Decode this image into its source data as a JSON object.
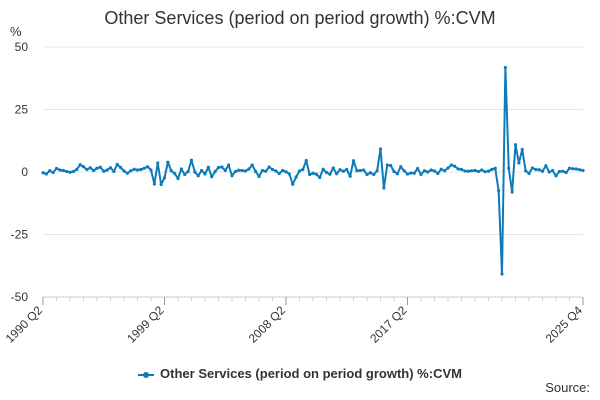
{
  "chart_data": {
    "type": "line",
    "title": "Other Services (period on period growth) %:CVM",
    "ylabel": "%",
    "xlabel": "",
    "ylim": [
      -50,
      50
    ],
    "yticks": [
      -50,
      -25,
      0,
      25,
      50
    ],
    "xtick_labels": [
      "1990 Q2",
      "1999 Q2",
      "2008 Q2",
      "2017 Q2",
      "2025 Q4"
    ],
    "grid": true,
    "legend_position": "bottom",
    "color": "#0d7bb8",
    "series": [
      {
        "name": "Other Services (period on period growth) %:CVM",
        "x_start": "1990 Q2",
        "x_end": "2025 Q4",
        "values": [
          -0.3,
          -0.8,
          0.5,
          -0.2,
          1.4,
          0.8,
          0.6,
          0.2,
          -0.1,
          0.2,
          1.0,
          2.9,
          2.1,
          1.0,
          1.7,
          0.6,
          1.5,
          1.9,
          0.3,
          0.8,
          1.7,
          0.2,
          3.0,
          1.8,
          0.4,
          -0.5,
          0.5,
          1.1,
          0.8,
          1.0,
          1.5,
          2.1,
          0.8,
          -4.8,
          3.6,
          -5.0,
          -2.3,
          3.9,
          0.5,
          -0.6,
          -2.6,
          1.2,
          -1.0,
          0.2,
          4.7,
          0.0,
          -1.5,
          0.6,
          -0.8,
          1.9,
          -1.9,
          0.2,
          1.8,
          2.0,
          0.6,
          2.8,
          -1.5,
          0.2,
          0.7,
          0.6,
          0.4,
          1.2,
          2.8,
          0.2,
          -1.8,
          0.6,
          0.3,
          2.0,
          1.0,
          0.4,
          -0.6,
          0.6,
          0.1,
          -0.8,
          -4.9,
          -2.0,
          0.4,
          1.0,
          4.6,
          -1.0,
          -0.5,
          -0.9,
          -2.2,
          1.1,
          -0.2,
          -0.9,
          1.6,
          -0.7,
          0.9,
          0.3,
          1.0,
          -1.7,
          4.5,
          0.5,
          0.6,
          0.8,
          -1.0,
          -0.3,
          -1.0,
          0.5,
          9.2,
          -6.4,
          2.8,
          2.6,
          0.2,
          -0.7,
          2.1,
          0.5,
          -0.8,
          -0.4,
          -0.5,
          1.4,
          -1.0,
          0.5,
          0.0,
          0.8,
          0.4,
          -0.6,
          1.1,
          0.5,
          1.6,
          2.8,
          2.3,
          1.2,
          1.0,
          0.4,
          0.3,
          0.5,
          0.6,
          0.2,
          0.8,
          0.1,
          0.3,
          1.0,
          1.5,
          -7.5,
          -40.8,
          41.8,
          1.5,
          -8.0,
          10.9,
          3.6,
          9.0,
          0.5,
          -0.6,
          1.6,
          1.0,
          0.9,
          0.3,
          2.5,
          0.0,
          0.6,
          -1.5,
          0.2,
          0.3,
          -0.2,
          1.5,
          1.3,
          1.2,
          0.9,
          0.6
        ]
      }
    ]
  },
  "legend": {
    "label": "Other Services (period on period growth) %:CVM"
  },
  "footer": {
    "source_label": "Source:"
  }
}
